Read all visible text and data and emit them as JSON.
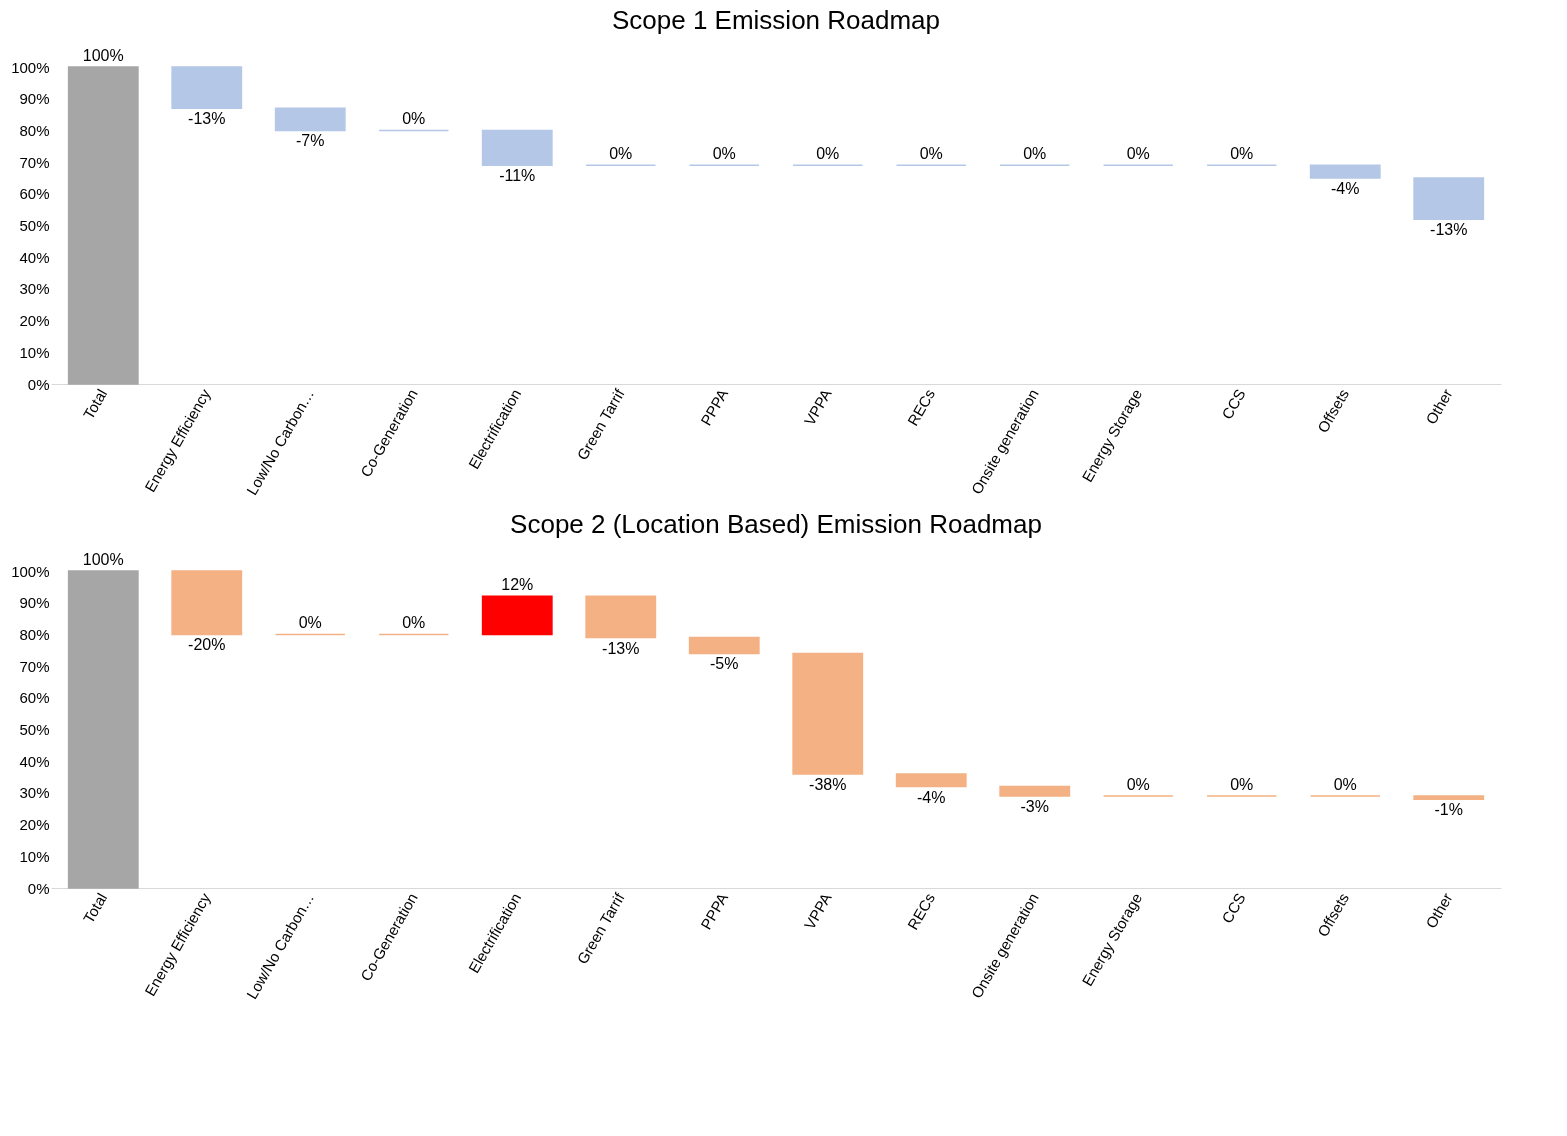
{
  "chart_data": [
    {
      "type": "bar",
      "title": "Scope 1 Emission Roadmap",
      "categories": [
        "Total",
        "Energy Efficiency",
        "Low/No Carbon…",
        "Co-Generation",
        "Electrification",
        "Green Tarrif",
        "PPPA",
        "VPPA",
        "RECs",
        "Onsite generation",
        "Energy Storage",
        "CCS",
        "Offsets",
        "Other"
      ],
      "values": [
        100,
        -13,
        -7,
        0,
        -11,
        0,
        0,
        0,
        0,
        0,
        0,
        0,
        -4,
        -13
      ],
      "base": [
        0,
        100,
        87,
        80,
        80,
        69,
        69,
        69,
        69,
        69,
        69,
        69,
        69,
        65
      ],
      "colors": [
        "#a6a6a6",
        "#b4c7e7",
        "#b4c7e7",
        "#b4c7e7",
        "#b4c7e7",
        "#b4c7e7",
        "#b4c7e7",
        "#b4c7e7",
        "#b4c7e7",
        "#b4c7e7",
        "#b4c7e7",
        "#b4c7e7",
        "#b4c7e7",
        "#b4c7e7"
      ],
      "value_labels": [
        "100%",
        "-13%",
        "-7%",
        "0%",
        "-11%",
        "0%",
        "0%",
        "0%",
        "0%",
        "0%",
        "0%",
        "0%",
        "-4%",
        "-13%"
      ],
      "ylim": [
        0,
        100
      ],
      "yticks": [
        {
          "value": 0,
          "label": "0%"
        },
        {
          "value": 10,
          "label": "10%"
        },
        {
          "value": 20,
          "label": "20%"
        },
        {
          "value": 30,
          "label": "30%"
        },
        {
          "value": 40,
          "label": "40%"
        },
        {
          "value": 50,
          "label": "50%"
        },
        {
          "value": 60,
          "label": "60%"
        },
        {
          "value": 70,
          "label": "70%"
        },
        {
          "value": 80,
          "label": "80%"
        },
        {
          "value": 90,
          "label": "90%"
        },
        {
          "value": 100,
          "label": "100%"
        }
      ]
    },
    {
      "type": "bar",
      "title": "Scope 2 (Location Based) Emission Roadmap",
      "categories": [
        "Total",
        "Energy Efficiency",
        "Low/No Carbon…",
        "Co-Generation",
        "Electrification",
        "Green Tarrif",
        "PPPA",
        "VPPA",
        "RECs",
        "Onsite generation",
        "Energy Storage",
        "CCS",
        "Offsets",
        "Other"
      ],
      "values": [
        100,
        -20,
        0,
        0,
        12,
        -13,
        -5,
        -38,
        -4,
        -3,
        0,
        0,
        0,
        -1
      ],
      "base": [
        0,
        100,
        80,
        80,
        80,
        92,
        79,
        74,
        36,
        32,
        29,
        29,
        29,
        29
      ],
      "colors": [
        "#a6a6a6",
        "#f4b183",
        "#f4b183",
        "#f4b183",
        "#ff0000",
        "#f4b183",
        "#f4b183",
        "#f4b183",
        "#f4b183",
        "#f4b183",
        "#f4b183",
        "#f4b183",
        "#f4b183",
        "#f4b183"
      ],
      "value_labels": [
        "100%",
        "-20%",
        "0%",
        "0%",
        "12%",
        "-13%",
        "-5%",
        "-38%",
        "-4%",
        "-3%",
        "0%",
        "0%",
        "0%",
        "-1%"
      ],
      "ylim": [
        0,
        100
      ],
      "yticks": [
        {
          "value": 0,
          "label": "0%"
        },
        {
          "value": 10,
          "label": "10%"
        },
        {
          "value": 20,
          "label": "20%"
        },
        {
          "value": 30,
          "label": "30%"
        },
        {
          "value": 40,
          "label": "40%"
        },
        {
          "value": 50,
          "label": "50%"
        },
        {
          "value": 60,
          "label": "60%"
        },
        {
          "value": 70,
          "label": "70%"
        },
        {
          "value": 80,
          "label": "80%"
        },
        {
          "value": 90,
          "label": "90%"
        },
        {
          "value": 100,
          "label": "100%"
        }
      ]
    }
  ]
}
